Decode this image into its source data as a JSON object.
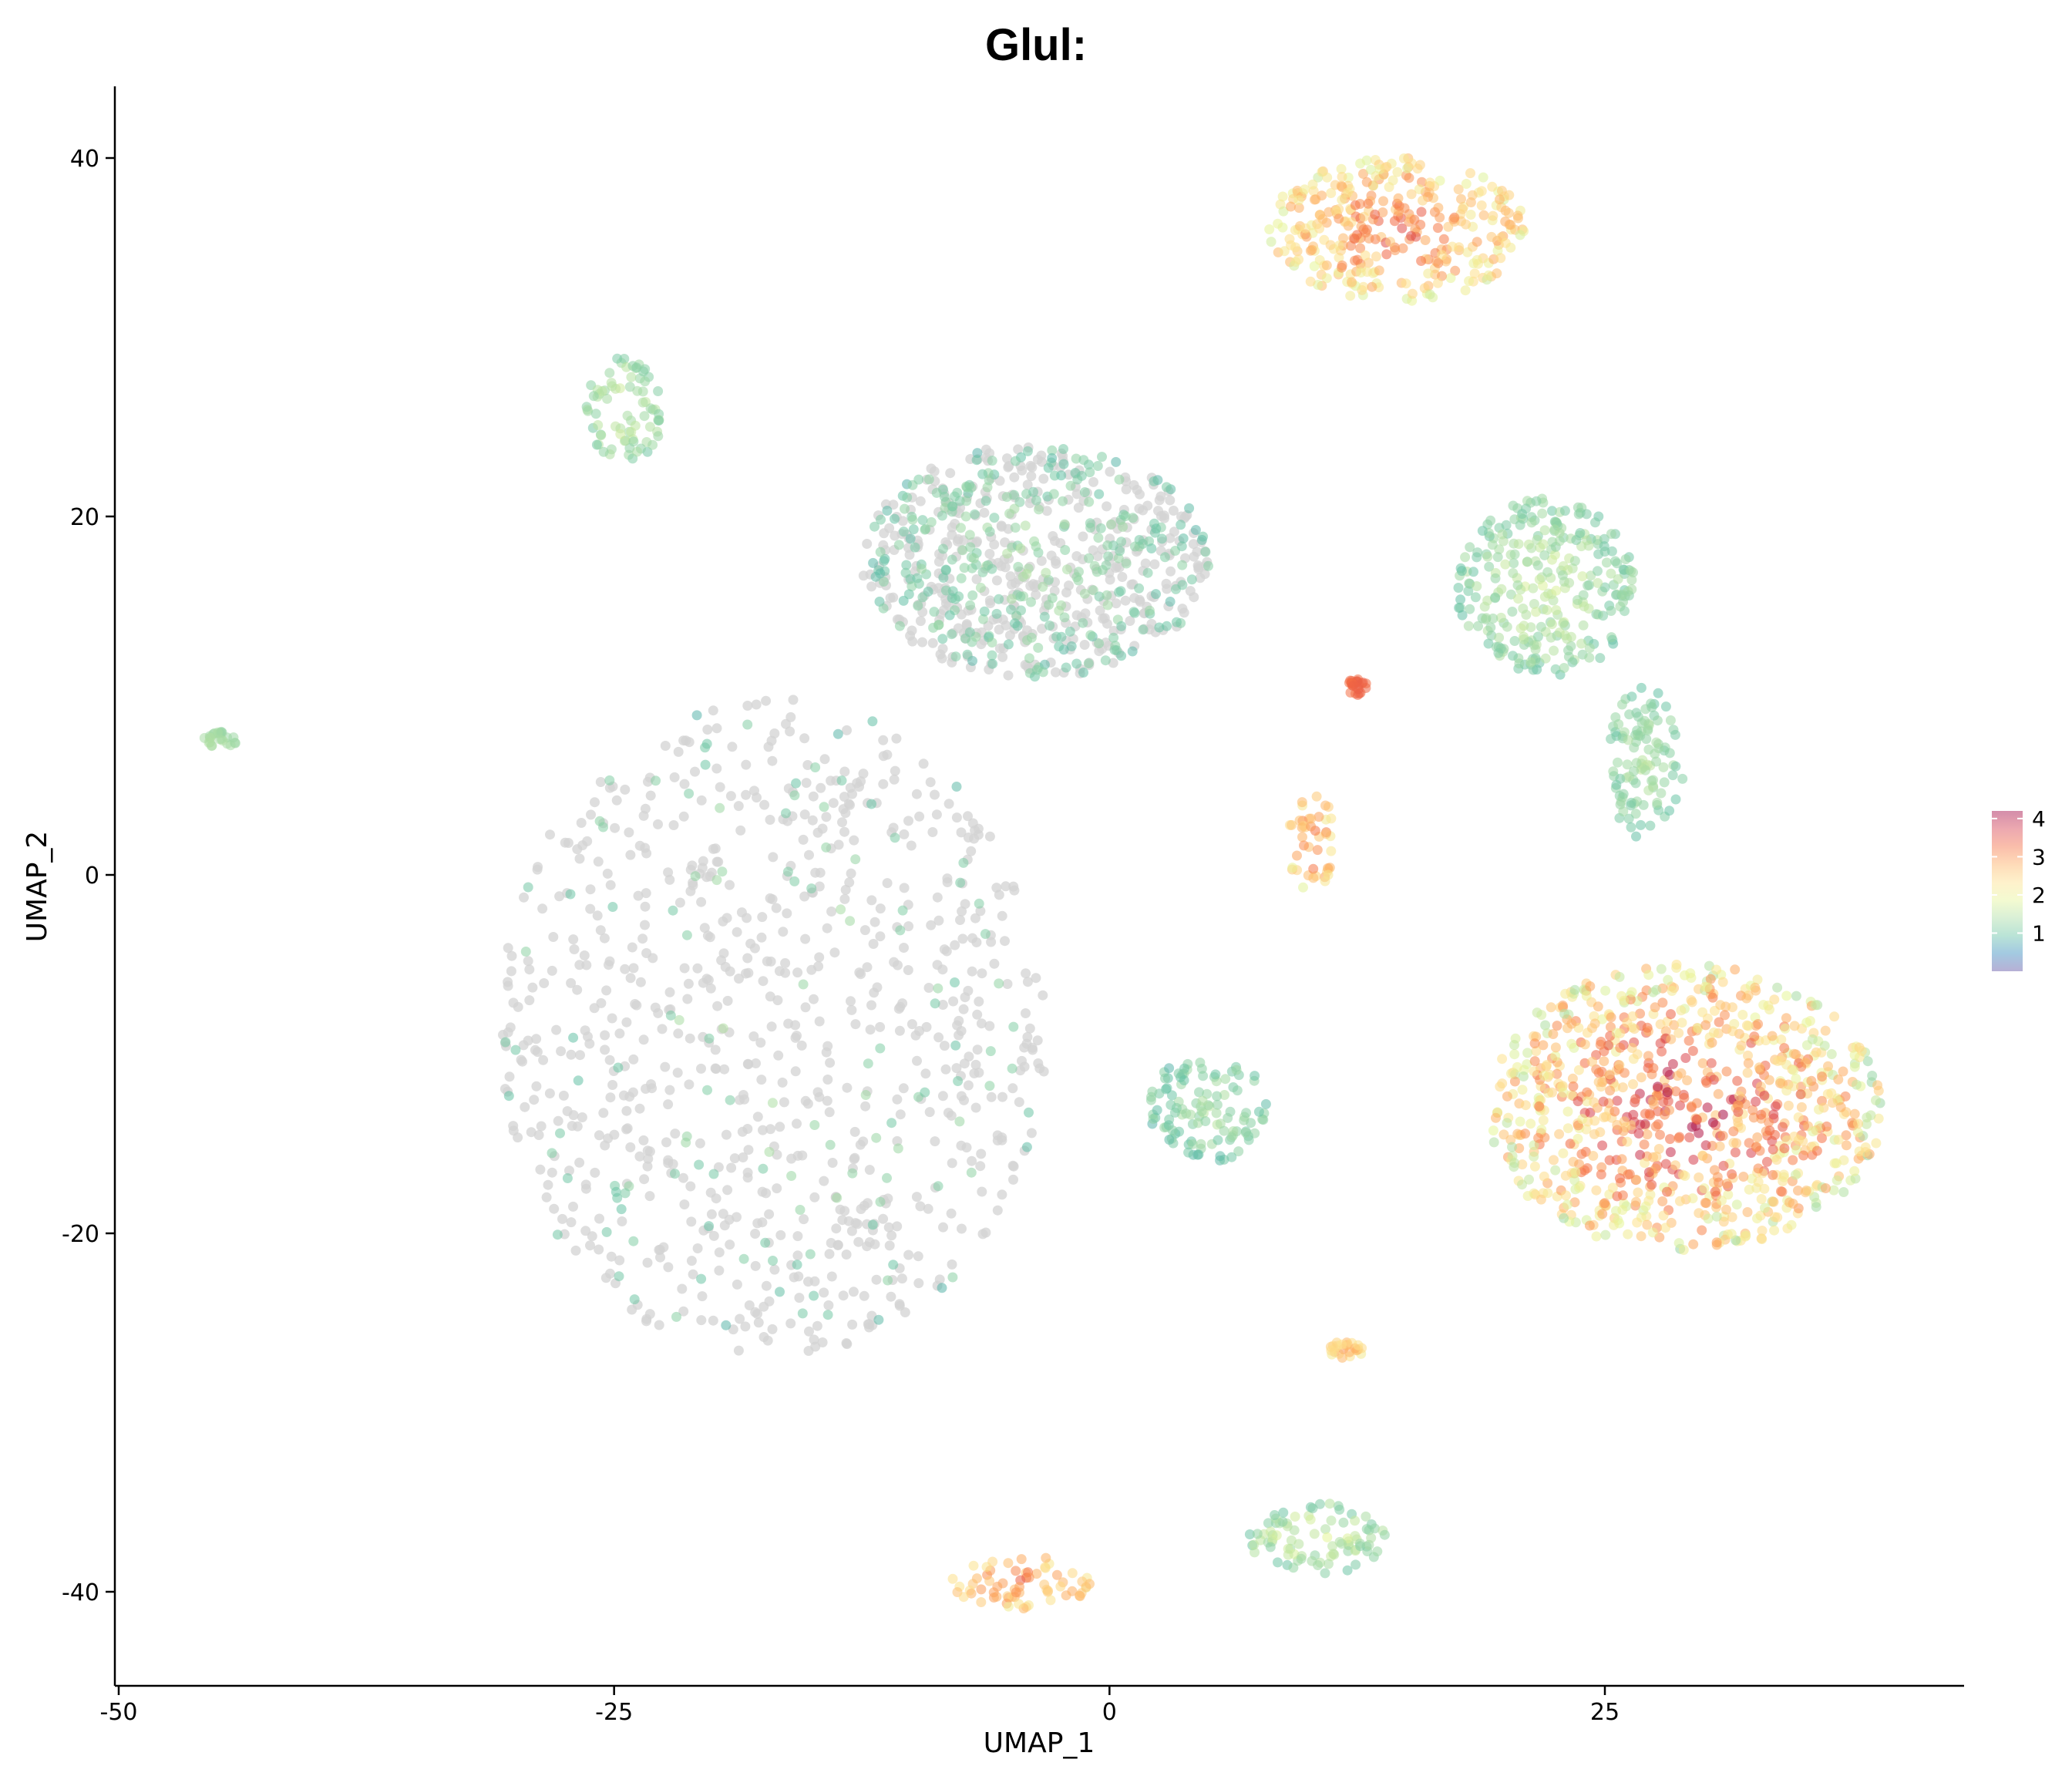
{
  "chart_data": {
    "type": "scatter",
    "title": "Glul:",
    "xlabel": "UMAP_1",
    "ylabel": "UMAP_2",
    "xlim": [
      -50,
      43
    ],
    "ylim": [
      -45,
      44
    ],
    "xticks": [
      -50,
      -25,
      0,
      25
    ],
    "xtick_labels": [
      "-50",
      "-25",
      "0",
      "25"
    ],
    "yticks": [
      -40,
      -20,
      0,
      20,
      40
    ],
    "ytick_labels": [
      "-40",
      "-20",
      "0",
      "20",
      "40"
    ],
    "grid": false,
    "legend": {
      "placement": "right",
      "title": "",
      "type": "colorbar",
      "range": [
        0,
        4.2
      ],
      "ticks": [
        1,
        2,
        3,
        4
      ],
      "tick_labels": [
        "1",
        "2",
        "3",
        "4"
      ],
      "colormap": [
        "#5e4fa2",
        "#3288bd",
        "#66c2a5",
        "#abdda4",
        "#e6f598",
        "#fee08b",
        "#fdae61",
        "#f46d43",
        "#d53e4f",
        "#9e0142"
      ]
    },
    "point_alpha": 0.55,
    "na_color": "#d3d3d3",
    "clusters": [
      {
        "id": "c1",
        "x": [
          8,
          21
        ],
        "y": [
          32,
          40
        ],
        "expr": [
          1.6,
          3.6
        ]
      },
      {
        "id": "c2",
        "x": [
          -26.5,
          -22.5
        ],
        "y": [
          23,
          29
        ],
        "expr": [
          1.0,
          1.8
        ]
      },
      {
        "id": "c3",
        "x": [
          -12.5,
          5
        ],
        "y": [
          11,
          24
        ],
        "expr": [
          0.8,
          1.5
        ],
        "grey_fraction": 0.55
      },
      {
        "id": "c4",
        "x": [
          17.5,
          26.5
        ],
        "y": [
          11,
          21
        ],
        "expr": [
          0.9,
          1.8
        ]
      },
      {
        "id": "c5",
        "x": [
          12,
          13
        ],
        "y": [
          10,
          11
        ],
        "expr": [
          3.2,
          3.5
        ]
      },
      {
        "id": "c6",
        "x": [
          25,
          29
        ],
        "y": [
          2,
          10.5
        ],
        "expr": [
          0.9,
          1.6
        ]
      },
      {
        "id": "c7",
        "x": [
          -46,
          -44
        ],
        "y": [
          7,
          8
        ],
        "expr": [
          1.2,
          1.5
        ]
      },
      {
        "id": "c8",
        "x": [
          9,
          11.5
        ],
        "y": [
          -1,
          4.5
        ],
        "expr": [
          1.8,
          3.6
        ]
      },
      {
        "id": "c9",
        "x": [
          -31,
          -3
        ],
        "y": [
          -27,
          10
        ],
        "expr": [
          0.8,
          1.5
        ],
        "grey_fraction": 0.85
      },
      {
        "id": "c10",
        "x": [
          2,
          8
        ],
        "y": [
          -16,
          -10
        ],
        "expr": [
          0.8,
          1.6
        ]
      },
      {
        "id": "c11",
        "x": [
          19,
          39
        ],
        "y": [
          -21,
          -5
        ],
        "expr": [
          1.2,
          4.2
        ]
      },
      {
        "id": "c12",
        "x": [
          11,
          13
        ],
        "y": [
          -27,
          -26
        ],
        "expr": [
          2.0,
          3.2
        ]
      },
      {
        "id": "c13",
        "x": [
          -8,
          -1
        ],
        "y": [
          -41,
          -38
        ],
        "expr": [
          2.0,
          3.4
        ]
      },
      {
        "id": "c14",
        "x": [
          7,
          14
        ],
        "y": [
          -39,
          -35
        ],
        "expr": [
          0.9,
          2.0
        ]
      }
    ]
  }
}
